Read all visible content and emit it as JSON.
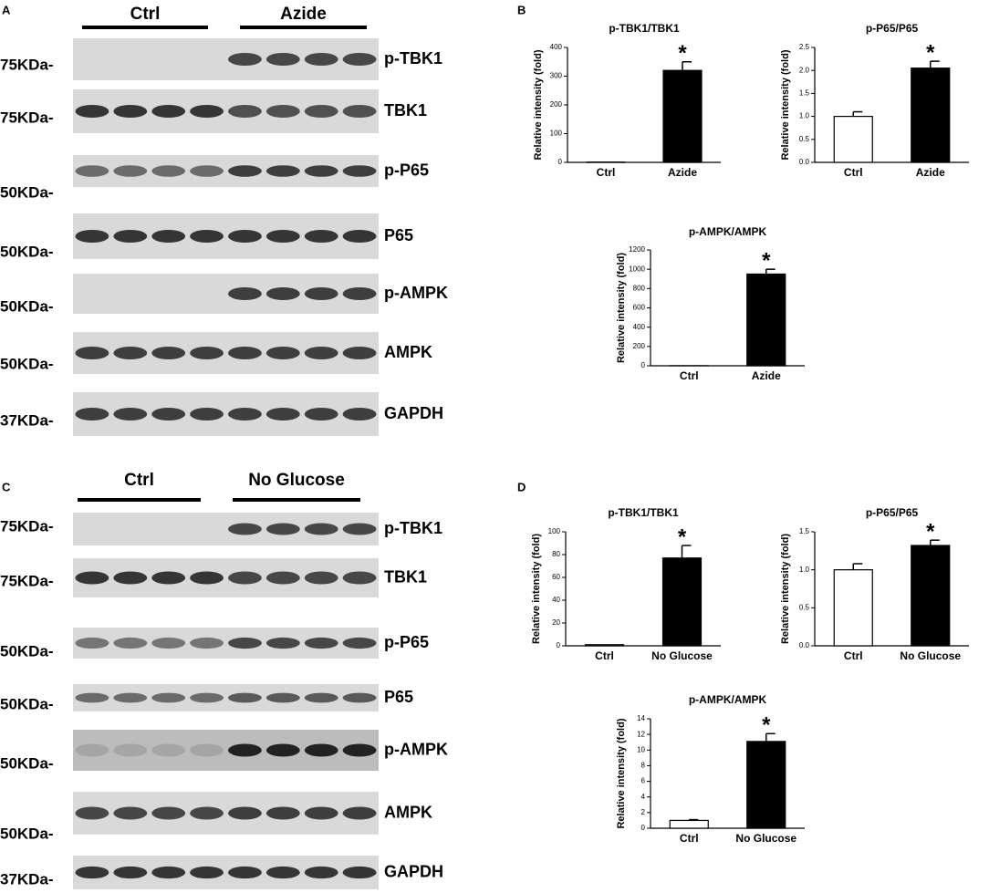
{
  "blots": [
    {
      "label": "A",
      "groups": [
        "Ctrl",
        "Azide"
      ],
      "rows": [
        {
          "marker": "75KDa-",
          "protein": "p-TBK1"
        },
        {
          "marker": "75KDa-",
          "protein": "TBK1"
        },
        {
          "marker": "50KDa-",
          "protein": "p-P65"
        },
        {
          "marker": "50KDa-",
          "protein": "P65"
        },
        {
          "marker": "50KDa-",
          "protein": "p-AMPK"
        },
        {
          "marker": "50KDa-",
          "protein": "AMPK"
        },
        {
          "marker": "37KDa-",
          "protein": "GAPDH"
        }
      ]
    },
    {
      "label": "C",
      "groups": [
        "Ctrl",
        "No Glucose"
      ],
      "rows": [
        {
          "marker": "75KDa-",
          "protein": "p-TBK1"
        },
        {
          "marker": "75KDa-",
          "protein": "TBK1"
        },
        {
          "marker": "50KDa-",
          "protein": "p-P65"
        },
        {
          "marker": "50KDa-",
          "protein": "P65"
        },
        {
          "marker": "50KDa-",
          "protein": "p-AMPK"
        },
        {
          "marker": "50KDa-",
          "protein": "AMPK"
        },
        {
          "marker": "37KDa-",
          "protein": "GAPDH"
        }
      ]
    }
  ],
  "chart_panels": [
    "B",
    "D"
  ],
  "chart_data": [
    {
      "type": "bar",
      "title": "p-TBK1/TBK1",
      "ylabel": "Relative intensity (fold)",
      "categories": [
        "Ctrl",
        "Azide"
      ],
      "values": [
        1,
        320
      ],
      "errors": [
        0,
        30
      ],
      "colors": [
        "#ffffff",
        "#000000"
      ],
      "ylim": [
        0,
        400
      ],
      "yticks": [
        0,
        100,
        200,
        300,
        400
      ],
      "annotations": [
        {
          "text": "*",
          "category": "Azide"
        }
      ]
    },
    {
      "type": "bar",
      "title": "p-P65/P65",
      "ylabel": "Relative intensity (fold)",
      "categories": [
        "Ctrl",
        "Azide"
      ],
      "values": [
        1.0,
        2.05
      ],
      "errors": [
        0.1,
        0.15
      ],
      "colors": [
        "#ffffff",
        "#000000"
      ],
      "ylim": [
        0,
        2.5
      ],
      "yticks": [
        {
          "value": 0,
          "label": "0.0"
        },
        0.5,
        {
          "value": 1,
          "label": "1.0"
        },
        1.5,
        {
          "value": 2,
          "label": "2.0"
        },
        2.5
      ],
      "annotations": [
        {
          "text": "*",
          "category": "Azide"
        }
      ]
    },
    {
      "type": "bar",
      "title": "p-AMPK/AMPK",
      "ylabel": "Relative intensity (fold)",
      "categories": [
        "Ctrl",
        "Azide"
      ],
      "values": [
        1,
        950
      ],
      "errors": [
        0,
        50
      ],
      "colors": [
        "#ffffff",
        "#000000"
      ],
      "ylim": [
        0,
        1200
      ],
      "yticks": [
        0,
        200,
        400,
        600,
        800,
        1000,
        1200
      ],
      "annotations": [
        {
          "text": "*",
          "category": "Azide"
        }
      ]
    },
    {
      "type": "bar",
      "title": "p-TBK1/TBK1",
      "ylabel": "Relative intensity (fold)",
      "categories": [
        "Ctrl",
        "No Glucose"
      ],
      "values": [
        1,
        77
      ],
      "errors": [
        0,
        11
      ],
      "colors": [
        "#ffffff",
        "#000000"
      ],
      "ylim": [
        0,
        100
      ],
      "yticks": [
        0,
        20,
        40,
        60,
        80,
        100
      ],
      "annotations": [
        {
          "text": "*",
          "category": "No Glucose"
        }
      ]
    },
    {
      "type": "bar",
      "title": "p-P65/P65",
      "ylabel": "Relative intensity (fold)",
      "categories": [
        "Ctrl",
        "No Glucose"
      ],
      "values": [
        1.0,
        1.32
      ],
      "errors": [
        0.08,
        0.07
      ],
      "colors": [
        "#ffffff",
        "#000000"
      ],
      "ylim": [
        0,
        1.5
      ],
      "yticks": [
        {
          "value": 0,
          "label": "0.0"
        },
        0.5,
        {
          "value": 1,
          "label": "1.0"
        },
        1.5
      ],
      "annotations": [
        {
          "text": "*",
          "category": "No Glucose"
        }
      ]
    },
    {
      "type": "bar",
      "title": "p-AMPK/AMPK",
      "ylabel": "Relative intensity (fold)",
      "categories": [
        "Ctrl",
        "No Glucose"
      ],
      "values": [
        1,
        11.1
      ],
      "errors": [
        0.1,
        1.0
      ],
      "colors": [
        "#ffffff",
        "#000000"
      ],
      "ylim": [
        0,
        14
      ],
      "yticks": [
        0,
        2,
        4,
        6,
        8,
        10,
        12,
        14
      ],
      "annotations": [
        {
          "text": "*",
          "category": "No Glucose"
        }
      ]
    }
  ]
}
